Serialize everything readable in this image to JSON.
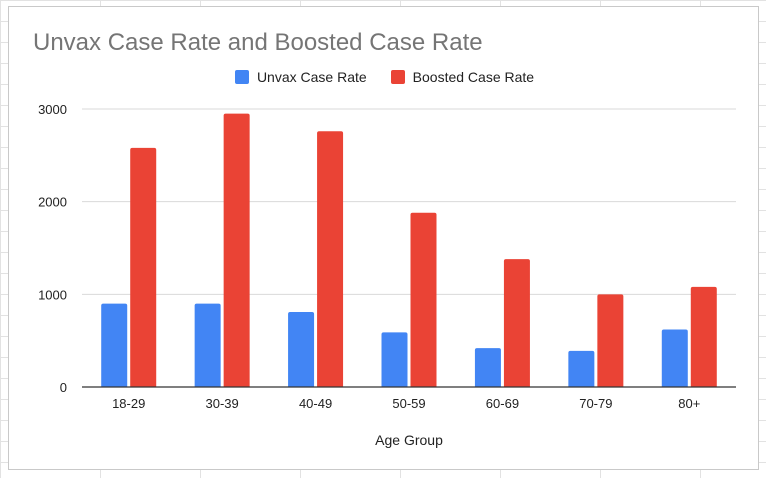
{
  "chart_data": {
    "type": "bar",
    "title": "Unvax Case Rate and Boosted Case Rate",
    "xlabel": "Age Group",
    "ylabel": "",
    "categories": [
      "18-29",
      "30-39",
      "40-49",
      "50-59",
      "60-69",
      "70-79",
      "80+"
    ],
    "series": [
      {
        "name": "Unvax Case Rate",
        "color": "#4285f4",
        "values": [
          900,
          900,
          810,
          590,
          420,
          390,
          620
        ]
      },
      {
        "name": "Boosted Case Rate",
        "color": "#ea4335",
        "values": [
          2580,
          2950,
          2760,
          1880,
          1380,
          1000,
          1080
        ]
      }
    ],
    "ylim": [
      0,
      3000
    ],
    "yticks": [
      0,
      1000,
      2000,
      3000
    ],
    "grid": true,
    "legend_position": "top"
  },
  "colors": {
    "gridline": "#d9d9d9",
    "baseline": "#333333",
    "title": "#757575"
  }
}
